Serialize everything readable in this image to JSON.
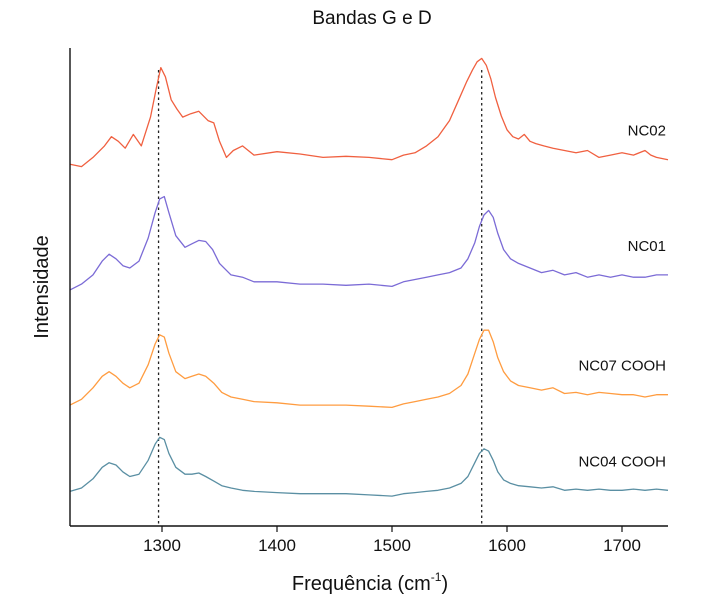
{
  "chart_data": {
    "type": "line",
    "title": "Bandas G e D",
    "xlabel": "Frequência (cm",
    "xlabel_sup": "-1",
    "xlabel_suffix": ")",
    "ylabel": "Intensidade",
    "xlim": [
      1220,
      1740
    ],
    "xticks": [
      1300,
      1400,
      1500,
      1600,
      1700
    ],
    "y_ticks_shown": false,
    "grid": false,
    "legend": "inline labels at right end of each curve",
    "reference_lines": [
      1297,
      1578
    ],
    "series": [
      {
        "name": "NC02",
        "color": "#f06040",
        "offset": 3.0,
        "x": [
          1220,
          1230,
          1240,
          1250,
          1256,
          1262,
          1268,
          1275,
          1282,
          1290,
          1295,
          1299,
          1303,
          1308,
          1313,
          1318,
          1325,
          1332,
          1340,
          1345,
          1350,
          1356,
          1362,
          1370,
          1380,
          1400,
          1420,
          1440,
          1460,
          1480,
          1500,
          1510,
          1520,
          1530,
          1540,
          1550,
          1558,
          1565,
          1570,
          1574,
          1578,
          1582,
          1586,
          1590,
          1595,
          1600,
          1605,
          1610,
          1615,
          1620,
          1625,
          1632,
          1640,
          1650,
          1660,
          1670,
          1680,
          1690,
          1700,
          1710,
          1720,
          1725,
          1730,
          1740
        ],
        "y": [
          0.14,
          0.12,
          0.2,
          0.3,
          0.38,
          0.34,
          0.28,
          0.4,
          0.3,
          0.55,
          0.8,
          0.98,
          0.9,
          0.7,
          0.62,
          0.55,
          0.58,
          0.6,
          0.52,
          0.5,
          0.34,
          0.2,
          0.26,
          0.3,
          0.22,
          0.25,
          0.23,
          0.2,
          0.21,
          0.2,
          0.18,
          0.22,
          0.24,
          0.3,
          0.38,
          0.52,
          0.7,
          0.86,
          0.96,
          1.03,
          1.06,
          1.0,
          0.88,
          0.72,
          0.56,
          0.44,
          0.38,
          0.36,
          0.4,
          0.34,
          0.32,
          0.3,
          0.28,
          0.26,
          0.24,
          0.26,
          0.2,
          0.22,
          0.24,
          0.22,
          0.26,
          0.22,
          0.2,
          0.18
        ]
      },
      {
        "name": "NC01",
        "color": "#7b6bd6",
        "offset": 2.0,
        "x": [
          1220,
          1230,
          1240,
          1248,
          1254,
          1260,
          1266,
          1272,
          1280,
          1288,
          1294,
          1298,
          1302,
          1306,
          1312,
          1320,
          1326,
          1332,
          1338,
          1344,
          1350,
          1360,
          1370,
          1380,
          1400,
          1420,
          1440,
          1460,
          1480,
          1500,
          1510,
          1520,
          1530,
          1540,
          1550,
          1560,
          1566,
          1572,
          1576,
          1580,
          1584,
          1588,
          1592,
          1597,
          1603,
          1610,
          1620,
          1630,
          1640,
          1650,
          1660,
          1670,
          1680,
          1690,
          1700,
          1710,
          1720,
          1730,
          1740
        ],
        "y": [
          0.05,
          0.1,
          0.18,
          0.3,
          0.36,
          0.32,
          0.26,
          0.24,
          0.3,
          0.5,
          0.72,
          0.84,
          0.86,
          0.72,
          0.52,
          0.42,
          0.45,
          0.48,
          0.47,
          0.4,
          0.28,
          0.18,
          0.16,
          0.12,
          0.12,
          0.1,
          0.1,
          0.09,
          0.1,
          0.08,
          0.12,
          0.14,
          0.16,
          0.18,
          0.2,
          0.24,
          0.32,
          0.46,
          0.6,
          0.7,
          0.74,
          0.68,
          0.54,
          0.4,
          0.32,
          0.28,
          0.24,
          0.2,
          0.22,
          0.18,
          0.2,
          0.16,
          0.18,
          0.16,
          0.18,
          0.16,
          0.16,
          0.18,
          0.18
        ]
      },
      {
        "name": "NC07 COOH",
        "color": "#ff9c40",
        "offset": 1.0,
        "x": [
          1220,
          1230,
          1240,
          1248,
          1254,
          1260,
          1266,
          1272,
          1280,
          1288,
          1294,
          1298,
          1302,
          1306,
          1312,
          1320,
          1326,
          1332,
          1338,
          1345,
          1352,
          1360,
          1370,
          1380,
          1400,
          1420,
          1440,
          1460,
          1480,
          1500,
          1510,
          1520,
          1530,
          1540,
          1550,
          1560,
          1566,
          1572,
          1576,
          1580,
          1584,
          1588,
          1592,
          1597,
          1603,
          1610,
          1620,
          1630,
          1640,
          1650,
          1660,
          1670,
          1680,
          1690,
          1700,
          1710,
          1720,
          1730,
          1740
        ],
        "y": [
          0.05,
          0.1,
          0.2,
          0.3,
          0.34,
          0.3,
          0.24,
          0.2,
          0.24,
          0.4,
          0.58,
          0.66,
          0.64,
          0.5,
          0.34,
          0.28,
          0.3,
          0.32,
          0.3,
          0.24,
          0.16,
          0.12,
          0.1,
          0.08,
          0.07,
          0.05,
          0.05,
          0.05,
          0.04,
          0.03,
          0.06,
          0.08,
          0.1,
          0.12,
          0.15,
          0.22,
          0.32,
          0.5,
          0.62,
          0.7,
          0.7,
          0.6,
          0.46,
          0.34,
          0.26,
          0.22,
          0.2,
          0.18,
          0.2,
          0.15,
          0.16,
          0.14,
          0.16,
          0.15,
          0.14,
          0.14,
          0.12,
          0.14,
          0.14
        ]
      },
      {
        "name": "NC04 COOH",
        "color": "#5a8fa3",
        "offset": 0.25,
        "x": [
          1220,
          1230,
          1240,
          1248,
          1254,
          1260,
          1266,
          1272,
          1280,
          1288,
          1294,
          1298,
          1302,
          1306,
          1312,
          1320,
          1326,
          1332,
          1338,
          1345,
          1352,
          1360,
          1370,
          1380,
          1400,
          1420,
          1440,
          1460,
          1480,
          1500,
          1510,
          1520,
          1530,
          1540,
          1550,
          1560,
          1566,
          1572,
          1576,
          1580,
          1584,
          1588,
          1592,
          1597,
          1603,
          1610,
          1620,
          1630,
          1640,
          1650,
          1660,
          1670,
          1680,
          1690,
          1700,
          1710,
          1720,
          1730,
          1740
        ],
        "y": [
          0.05,
          0.08,
          0.16,
          0.26,
          0.3,
          0.28,
          0.22,
          0.18,
          0.2,
          0.32,
          0.46,
          0.52,
          0.5,
          0.38,
          0.26,
          0.2,
          0.2,
          0.21,
          0.18,
          0.14,
          0.1,
          0.08,
          0.06,
          0.05,
          0.04,
          0.03,
          0.03,
          0.03,
          0.02,
          0.01,
          0.03,
          0.04,
          0.05,
          0.06,
          0.08,
          0.12,
          0.18,
          0.3,
          0.38,
          0.42,
          0.4,
          0.32,
          0.22,
          0.15,
          0.12,
          0.1,
          0.09,
          0.08,
          0.09,
          0.06,
          0.07,
          0.06,
          0.07,
          0.06,
          0.06,
          0.07,
          0.06,
          0.07,
          0.06
        ]
      }
    ]
  }
}
